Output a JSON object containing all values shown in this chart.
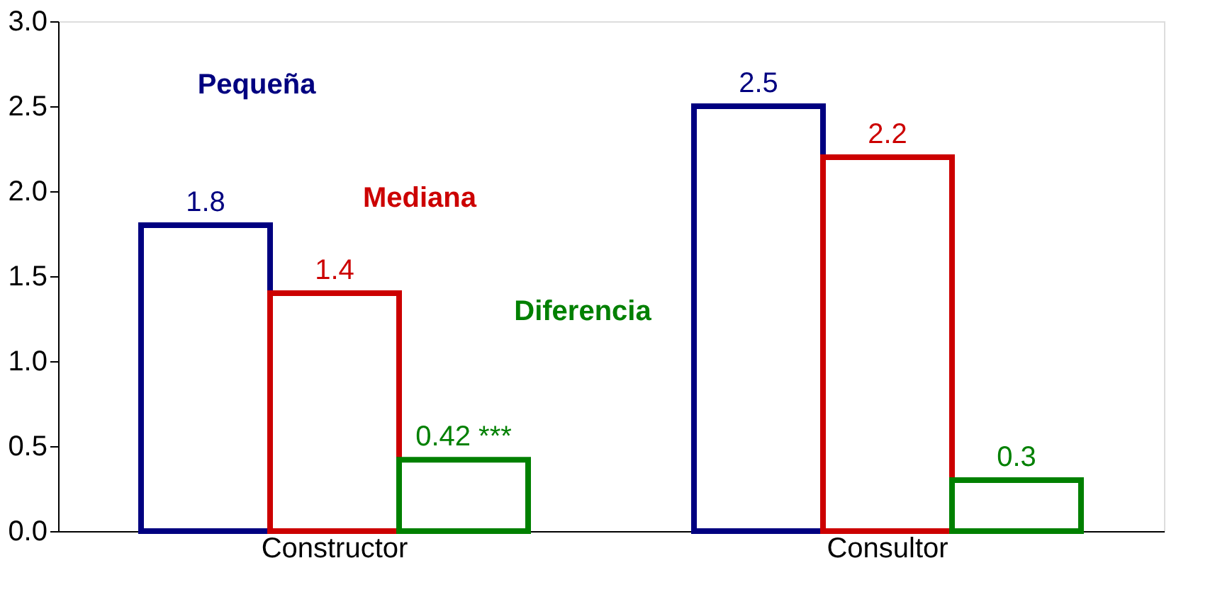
{
  "chart_data": {
    "type": "bar",
    "categories": [
      "Constructor",
      "Consultor"
    ],
    "series": [
      {
        "name": "Pequeña",
        "color": "#000080",
        "values": [
          1.8,
          2.5
        ],
        "value_labels": [
          "1.8",
          "2.5"
        ]
      },
      {
        "name": "Mediana",
        "color": "#cc0000",
        "values": [
          1.4,
          2.2
        ],
        "value_labels": [
          "1.4",
          "2.2"
        ]
      },
      {
        "name": "Diferencia",
        "color": "#008000",
        "values": [
          0.42,
          0.3
        ],
        "value_labels": [
          "0.42 ***",
          "0.3"
        ]
      }
    ],
    "ylim": [
      0,
      3
    ],
    "yticks": [
      {
        "value": 0,
        "label": "0.0"
      },
      0.5,
      {
        "value": 1,
        "label": "1.0"
      },
      1.5,
      {
        "value": 2,
        "label": "2.0"
      },
      2.5,
      {
        "value": 3,
        "label": "3.0"
      }
    ],
    "grid": false
  }
}
